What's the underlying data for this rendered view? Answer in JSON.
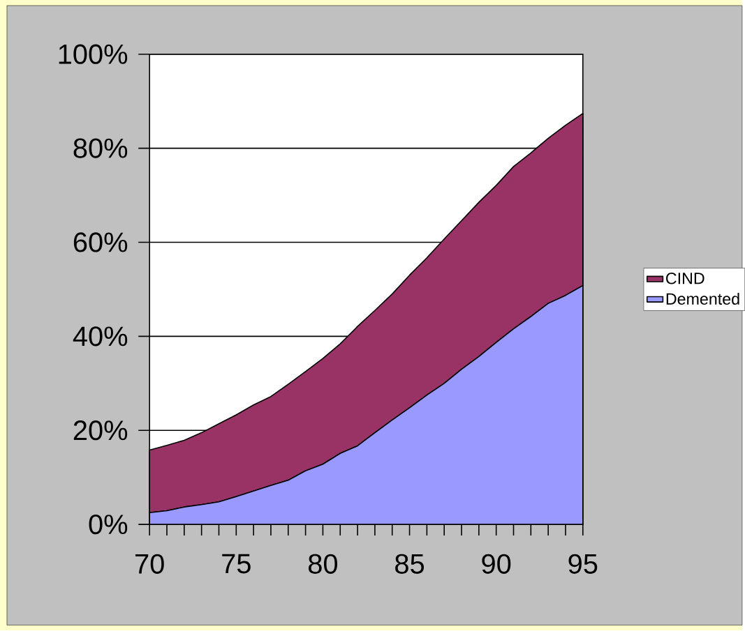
{
  "chart_data": {
    "type": "area",
    "stacked": true,
    "x": [
      70,
      71,
      72,
      73,
      74,
      75,
      76,
      77,
      78,
      79,
      80,
      81,
      82,
      83,
      84,
      85,
      86,
      87,
      88,
      89,
      90,
      91,
      92,
      93,
      94,
      95
    ],
    "series": [
      {
        "name": "Demented",
        "color": "#9999ff",
        "values": [
          2.5,
          2.9,
          3.7,
          4.2,
          4.8,
          5.9,
          7.1,
          8.3,
          9.4,
          11.4,
          12.8,
          15.1,
          16.7,
          19.5,
          22.2,
          24.8,
          27.5,
          30.0,
          33.0,
          35.7,
          38.7,
          41.6,
          44.2,
          47.0,
          48.7,
          50.8
        ]
      },
      {
        "name": "CIND",
        "color": "#993366",
        "values": [
          13.3,
          13.9,
          14.2,
          15.3,
          16.6,
          17.4,
          18.3,
          18.9,
          20.4,
          21.1,
          22.5,
          23.3,
          25.4,
          26.0,
          26.8,
          28.2,
          29.2,
          30.7,
          31.6,
          32.8,
          33.4,
          34.5,
          34.8,
          35.1,
          36.2,
          36.6
        ]
      }
    ],
    "xlim": [
      70,
      95
    ],
    "xticks": [
      70,
      {
        "value": 71,
        "label": null
      },
      {
        "value": 72,
        "label": null
      },
      {
        "value": 73,
        "label": null
      },
      {
        "value": 74,
        "label": null
      },
      75,
      {
        "value": 76,
        "label": null
      },
      {
        "value": 77,
        "label": null
      },
      {
        "value": 78,
        "label": null
      },
      {
        "value": 79,
        "label": null
      },
      80,
      {
        "value": 81,
        "label": null
      },
      {
        "value": 82,
        "label": null
      },
      {
        "value": 83,
        "label": null
      },
      {
        "value": 84,
        "label": null
      },
      85,
      {
        "value": 86,
        "label": null
      },
      {
        "value": 87,
        "label": null
      },
      {
        "value": 88,
        "label": null
      },
      {
        "value": 89,
        "label": null
      },
      90,
      {
        "value": 91,
        "label": null
      },
      {
        "value": 92,
        "label": null
      },
      {
        "value": 93,
        "label": null
      },
      {
        "value": 94,
        "label": null
      },
      95
    ],
    "ylim": [
      0,
      100
    ],
    "yticks": [
      {
        "value": 0,
        "label": "0%"
      },
      {
        "value": 20,
        "label": "20%"
      },
      {
        "value": 40,
        "label": "40%"
      },
      {
        "value": 60,
        "label": "60%"
      },
      {
        "value": 80,
        "label": "80%"
      },
      {
        "value": 100,
        "label": "100%"
      }
    ],
    "grid": "y",
    "legend": "right"
  }
}
